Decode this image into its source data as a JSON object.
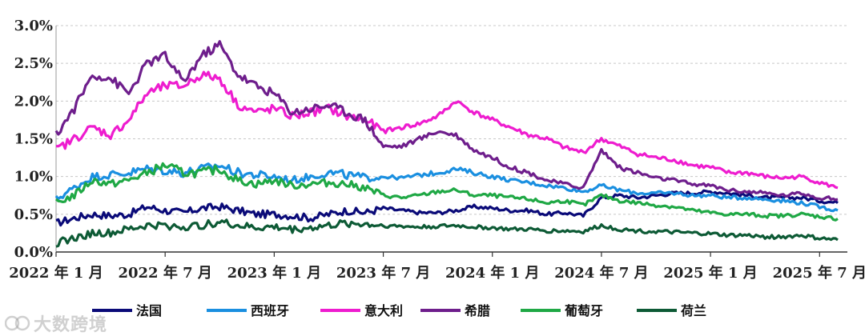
{
  "chart_data": {
    "type": "line",
    "title": "",
    "xlabel": "",
    "ylabel": "",
    "ylim": [
      0,
      3.0
    ],
    "y_ticks": [
      "0.0%",
      "0.5%",
      "1.0%",
      "1.5%",
      "2.0%",
      "2.5%",
      "3.0%"
    ],
    "x_tick_labels": [
      "2022年1月",
      "2022年7月",
      "2023年1月",
      "2023年7月",
      "2024年1月",
      "2024年7月",
      "2025年1月",
      "2025年7月"
    ],
    "grid": "horizontal-dashed",
    "legend_position": "bottom",
    "x": [
      "2022-01",
      "2022-02",
      "2022-03",
      "2022-04",
      "2022-05",
      "2022-06",
      "2022-07",
      "2022-08",
      "2022-09",
      "2022-10",
      "2022-11",
      "2022-12",
      "2023-01",
      "2023-02",
      "2023-03",
      "2023-04",
      "2023-05",
      "2023-06",
      "2023-07",
      "2023-08",
      "2023-09",
      "2023-10",
      "2023-11",
      "2023-12",
      "2024-01",
      "2024-02",
      "2024-03",
      "2024-04",
      "2024-05",
      "2024-06",
      "2024-07",
      "2024-08",
      "2024-09",
      "2024-10",
      "2024-11",
      "2024-12",
      "2025-01",
      "2025-02",
      "2025-03",
      "2025-04",
      "2025-05",
      "2025-06",
      "2025-07",
      "2025-08"
    ],
    "series": [
      {
        "name": "法国",
        "color": "#0a0a78",
        "values": [
          0.38,
          0.45,
          0.5,
          0.48,
          0.5,
          0.6,
          0.55,
          0.52,
          0.58,
          0.6,
          0.55,
          0.5,
          0.5,
          0.48,
          0.45,
          0.5,
          0.55,
          0.52,
          0.58,
          0.55,
          0.52,
          0.52,
          0.55,
          0.6,
          0.58,
          0.55,
          0.55,
          0.5,
          0.52,
          0.48,
          0.72,
          0.75,
          0.72,
          0.75,
          0.78,
          0.78,
          0.8,
          0.78,
          0.75,
          0.72,
          0.72,
          0.72,
          0.68,
          0.65
        ]
      },
      {
        "name": "西班牙",
        "color": "#1a8fe0",
        "values": [
          0.7,
          0.85,
          1.0,
          1.02,
          1.05,
          1.1,
          1.08,
          1.05,
          1.1,
          1.15,
          1.05,
          1.02,
          1.0,
          0.95,
          1.0,
          1.05,
          1.02,
          0.98,
          1.0,
          0.98,
          1.02,
          1.05,
          1.1,
          1.05,
          1.0,
          0.95,
          0.92,
          0.88,
          0.85,
          0.8,
          0.88,
          0.82,
          0.78,
          0.78,
          0.78,
          0.75,
          0.75,
          0.72,
          0.72,
          0.7,
          0.68,
          0.65,
          0.6,
          0.55
        ]
      },
      {
        "name": "意大利",
        "color": "#ee1ccf",
        "values": [
          1.35,
          1.5,
          1.65,
          1.55,
          1.75,
          2.1,
          2.2,
          2.2,
          2.35,
          2.3,
          1.95,
          1.85,
          1.9,
          1.8,
          1.85,
          1.9,
          1.8,
          1.75,
          1.6,
          1.65,
          1.7,
          1.8,
          2.0,
          1.85,
          1.75,
          1.65,
          1.55,
          1.5,
          1.38,
          1.32,
          1.5,
          1.4,
          1.3,
          1.25,
          1.22,
          1.15,
          1.12,
          1.05,
          1.05,
          1.0,
          0.98,
          1.0,
          0.92,
          0.85
        ]
      },
      {
        "name": "希腊",
        "color": "#6e1e8c",
        "values": [
          1.55,
          1.9,
          2.35,
          2.3,
          2.1,
          2.5,
          2.6,
          2.25,
          2.6,
          2.75,
          2.35,
          2.2,
          2.1,
          1.85,
          1.9,
          1.95,
          1.85,
          1.75,
          1.4,
          1.4,
          1.5,
          1.6,
          1.55,
          1.35,
          1.25,
          1.12,
          1.05,
          0.95,
          0.9,
          0.85,
          1.35,
          1.12,
          1.05,
          0.98,
          0.95,
          0.9,
          0.88,
          0.82,
          0.8,
          0.78,
          0.75,
          0.78,
          0.72,
          0.7
        ]
      },
      {
        "name": "葡萄牙",
        "color": "#1fa845",
        "values": [
          0.65,
          0.75,
          0.95,
          0.9,
          0.95,
          1.05,
          1.15,
          1.05,
          1.05,
          1.1,
          0.95,
          0.9,
          0.95,
          0.88,
          0.9,
          0.92,
          0.9,
          0.85,
          0.75,
          0.72,
          0.75,
          0.8,
          0.82,
          0.75,
          0.75,
          0.72,
          0.7,
          0.65,
          0.68,
          0.62,
          0.75,
          0.68,
          0.65,
          0.62,
          0.6,
          0.55,
          0.52,
          0.5,
          0.5,
          0.48,
          0.48,
          0.5,
          0.47,
          0.44
        ]
      },
      {
        "name": "荷兰",
        "color": "#0d5a35",
        "values": [
          0.12,
          0.18,
          0.25,
          0.25,
          0.3,
          0.35,
          0.35,
          0.33,
          0.35,
          0.4,
          0.35,
          0.32,
          0.33,
          0.3,
          0.32,
          0.35,
          0.38,
          0.37,
          0.35,
          0.34,
          0.33,
          0.34,
          0.35,
          0.33,
          0.32,
          0.3,
          0.3,
          0.28,
          0.28,
          0.27,
          0.35,
          0.3,
          0.28,
          0.27,
          0.26,
          0.25,
          0.24,
          0.22,
          0.22,
          0.2,
          0.2,
          0.22,
          0.18,
          0.16
        ]
      }
    ]
  },
  "watermark": {
    "text": "大数跨境"
  }
}
